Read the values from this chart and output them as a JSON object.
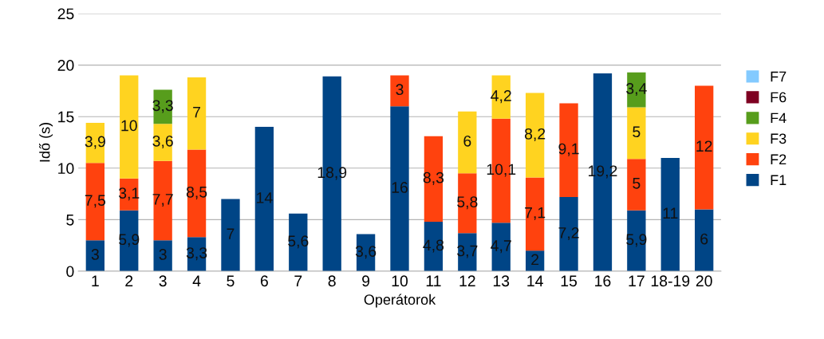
{
  "chart_data": {
    "type": "bar",
    "stacked": true,
    "xlabel": "Operátorok",
    "ylabel": "Idő (s)",
    "categories": [
      "1",
      "2",
      "3",
      "4",
      "5",
      "6",
      "7",
      "8",
      "9",
      "10",
      "11",
      "12",
      "13",
      "14",
      "15",
      "16",
      "17",
      "18-19",
      "20"
    ],
    "series": [
      {
        "name": "F1",
        "color": "#004586",
        "values": [
          3,
          5.9,
          3,
          3.3,
          7,
          14,
          5.6,
          18.9,
          3.6,
          16,
          4.8,
          3.7,
          4.7,
          2,
          7.2,
          19.2,
          5.9,
          11,
          6
        ],
        "value_labels": [
          "3",
          "5,9",
          "3",
          "3,3",
          "7",
          "14",
          "5,6",
          "18,9",
          "3,6",
          "16",
          "4,8",
          "3,7",
          "4,7",
          "2",
          "7,2",
          "19,2",
          "5,9",
          "11",
          "6"
        ]
      },
      {
        "name": "F2",
        "color": "#ff420e",
        "values": [
          7.5,
          3.1,
          7.7,
          8.5,
          null,
          null,
          null,
          null,
          null,
          3,
          8.3,
          5.8,
          10.1,
          7.1,
          9.1,
          null,
          5,
          null,
          12
        ],
        "value_labels": [
          "7,5",
          "3,1",
          "7,7",
          "8,5",
          null,
          null,
          null,
          null,
          null,
          "3",
          "8,3",
          "5,8",
          "10,1",
          "7,1",
          "9,1",
          null,
          "5",
          null,
          "12"
        ]
      },
      {
        "name": "F3",
        "color": "#ffd320",
        "values": [
          3.9,
          10,
          3.6,
          7,
          null,
          null,
          null,
          null,
          null,
          null,
          null,
          6,
          4.2,
          8.2,
          null,
          null,
          5,
          null,
          null
        ],
        "value_labels": [
          "3,9",
          "10",
          "3,6",
          "7",
          null,
          null,
          null,
          null,
          null,
          null,
          null,
          "6",
          "4,2",
          "8,2",
          null,
          null,
          "5",
          null,
          null
        ]
      },
      {
        "name": "F4",
        "color": "#579d1c",
        "values": [
          null,
          null,
          3.3,
          null,
          null,
          null,
          null,
          null,
          null,
          null,
          null,
          null,
          null,
          null,
          null,
          null,
          3.4,
          null,
          null
        ],
        "value_labels": [
          null,
          null,
          "3,3",
          null,
          null,
          null,
          null,
          null,
          null,
          null,
          null,
          null,
          null,
          null,
          null,
          null,
          "3,4",
          null,
          null
        ]
      },
      {
        "name": "F6",
        "color": "#7e0021",
        "values": [
          null,
          null,
          null,
          null,
          null,
          null,
          null,
          null,
          null,
          null,
          null,
          null,
          null,
          null,
          null,
          null,
          null,
          null,
          null
        ]
      },
      {
        "name": "F7",
        "color": "#83caff",
        "values": [
          null,
          null,
          null,
          null,
          null,
          null,
          null,
          null,
          null,
          null,
          null,
          null,
          null,
          null,
          null,
          null,
          null,
          null,
          null
        ]
      }
    ],
    "ylim": [
      0,
      25
    ],
    "yticks": [
      0,
      5,
      10,
      15,
      20,
      25
    ],
    "grid": "y",
    "legend": "right"
  }
}
